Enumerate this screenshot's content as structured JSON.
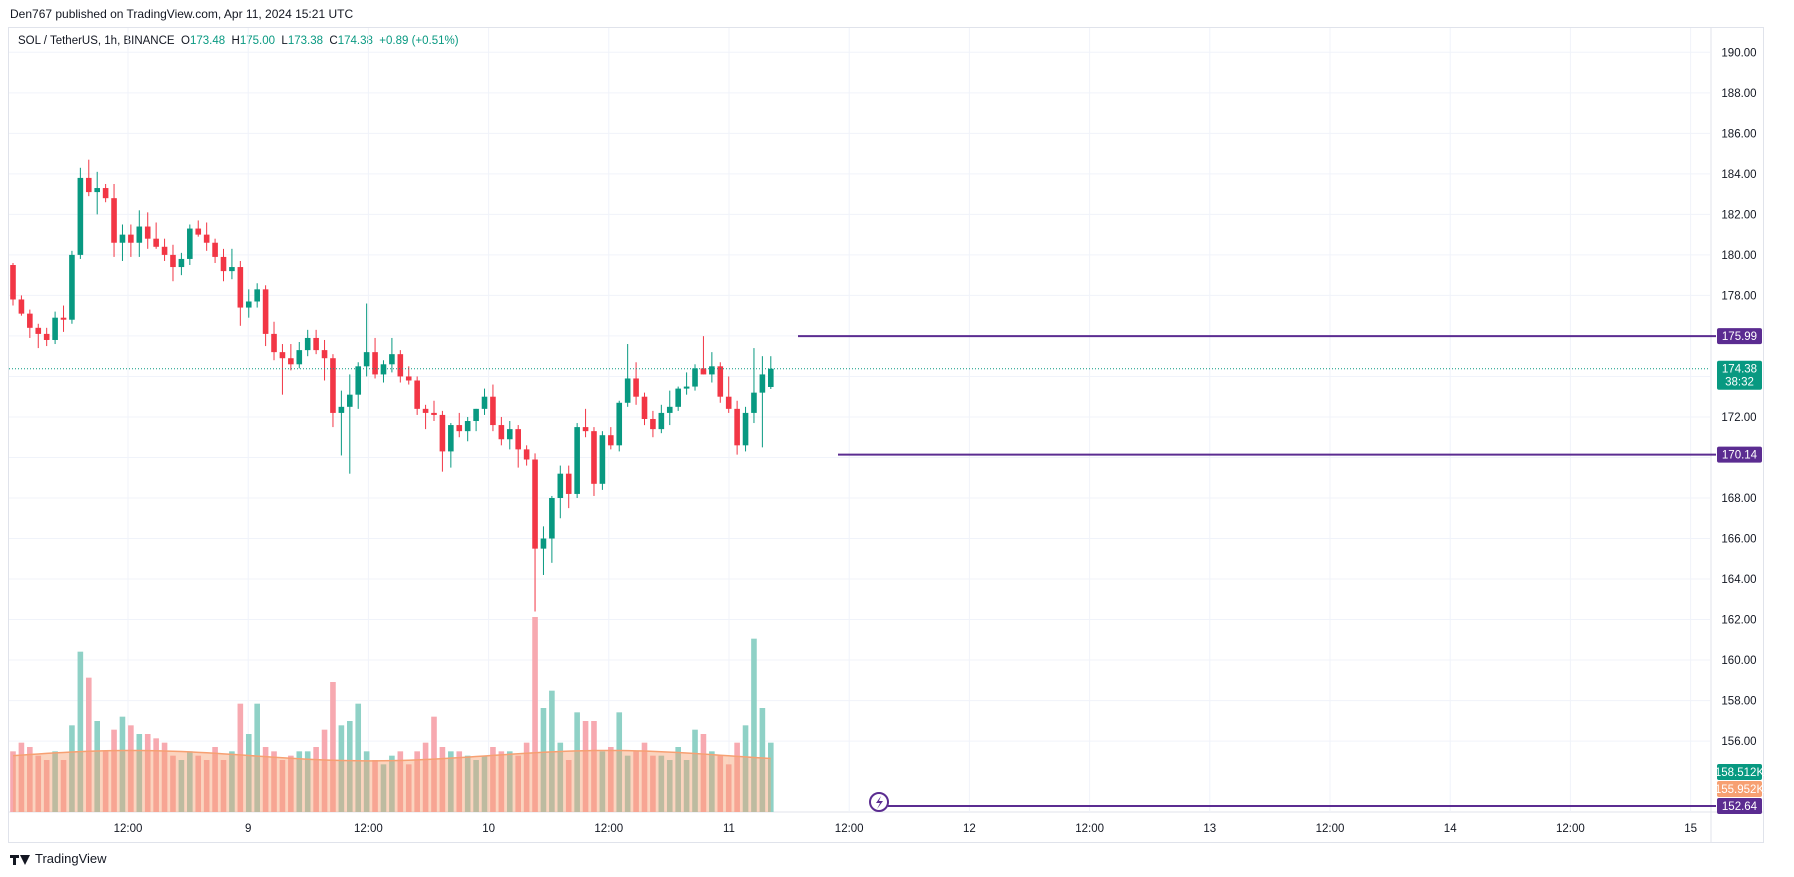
{
  "header": {
    "published": "Den767 published on TradingView.com, Apr 11, 2024 15:21 UTC"
  },
  "legend": {
    "symbol": "SOL / TetherUS, 1h, BINANCE",
    "open_label": "O",
    "open": "173.48",
    "high_label": "H",
    "high": "175.00",
    "low_label": "L",
    "low": "173.38",
    "close_label": "C",
    "close": "174.38",
    "change": "+0.89 (+0.51%)"
  },
  "footer": {
    "brand": "TradingView"
  },
  "colors": {
    "up": "#089981",
    "down": "#f23645",
    "vol_up": "#8fd1c6",
    "vol_down": "#f7a9b0",
    "vol_ma": "#f7a072",
    "level": "#5b2c91",
    "grid": "#f0f3fa"
  },
  "icons": {
    "marker": "lightning-icon"
  },
  "chart_data": {
    "type": "candlestick",
    "title": "",
    "interval": "1h",
    "ylim": [
      152.5,
      191.2
    ],
    "y_ticks": [
      "156.00",
      "158.00",
      "160.00",
      "162.00",
      "164.00",
      "166.00",
      "168.00",
      "170.00",
      "172.00",
      "174.00",
      "176.00",
      "178.00",
      "180.00",
      "182.00",
      "184.00",
      "186.00",
      "188.00",
      "190.00"
    ],
    "x_ticks": [
      "12:00",
      "9",
      "12:00",
      "10",
      "12:00",
      "11",
      "12:00",
      "12",
      "12:00",
      "13",
      "12:00",
      "14",
      "12:00",
      "15"
    ],
    "series": [
      {
        "ohlc": [
          [
            179.5,
            179.6,
            177.5,
            177.8
          ],
          [
            177.8,
            178.0,
            177.0,
            177.1
          ],
          [
            177.1,
            177.3,
            175.9,
            176.4
          ],
          [
            176.4,
            176.6,
            175.4,
            176.1
          ],
          [
            176.1,
            176.4,
            175.5,
            175.8
          ],
          [
            175.8,
            177.2,
            175.6,
            176.9
          ],
          [
            176.9,
            177.5,
            176.2,
            176.8
          ],
          [
            176.8,
            180.2,
            176.6,
            180.0
          ],
          [
            180.0,
            184.3,
            179.8,
            183.8
          ],
          [
            183.8,
            184.7,
            182.9,
            183.1
          ],
          [
            183.1,
            184.1,
            182.0,
            183.3
          ],
          [
            183.3,
            183.5,
            182.6,
            182.8
          ],
          [
            182.8,
            183.5,
            179.9,
            180.6
          ],
          [
            180.6,
            181.5,
            179.7,
            181.0
          ],
          [
            181.0,
            181.5,
            179.9,
            180.6
          ],
          [
            180.6,
            182.2,
            179.9,
            181.4
          ],
          [
            181.4,
            182.1,
            180.3,
            180.8
          ],
          [
            180.8,
            181.6,
            180.3,
            180.4
          ],
          [
            180.4,
            180.8,
            179.7,
            180.0
          ],
          [
            180.0,
            180.5,
            178.7,
            179.4
          ],
          [
            179.4,
            180.1,
            179.0,
            179.8
          ],
          [
            179.8,
            181.5,
            179.5,
            181.3
          ],
          [
            181.3,
            181.7,
            180.9,
            181.0
          ],
          [
            181.0,
            181.6,
            180.2,
            180.6
          ],
          [
            180.6,
            180.8,
            179.6,
            179.9
          ],
          [
            179.9,
            180.3,
            178.7,
            179.2
          ],
          [
            179.2,
            180.3,
            178.8,
            179.4
          ],
          [
            179.4,
            179.7,
            176.5,
            177.4
          ],
          [
            177.4,
            178.3,
            176.9,
            177.7
          ],
          [
            177.7,
            178.6,
            177.4,
            178.3
          ],
          [
            178.3,
            178.5,
            175.5,
            176.1
          ],
          [
            176.1,
            176.7,
            174.8,
            175.2
          ],
          [
            175.2,
            175.6,
            173.1,
            174.9
          ],
          [
            174.9,
            175.6,
            174.3,
            174.6
          ],
          [
            174.6,
            175.7,
            174.4,
            175.3
          ],
          [
            175.3,
            176.3,
            175.0,
            175.9
          ],
          [
            175.9,
            176.3,
            175.1,
            175.3
          ],
          [
            175.3,
            175.8,
            173.8,
            174.9
          ],
          [
            174.9,
            175.1,
            171.5,
            172.2
          ],
          [
            172.2,
            173.3,
            170.1,
            172.5
          ],
          [
            172.5,
            174.1,
            169.2,
            173.1
          ],
          [
            173.1,
            174.7,
            172.4,
            174.5
          ],
          [
            174.5,
            177.6,
            174.0,
            175.2
          ],
          [
            175.2,
            175.9,
            173.9,
            174.1
          ],
          [
            174.1,
            174.8,
            173.7,
            174.6
          ],
          [
            174.6,
            175.9,
            174.2,
            175.1
          ],
          [
            175.1,
            175.3,
            173.7,
            174.0
          ],
          [
            174.0,
            174.5,
            173.6,
            173.8
          ],
          [
            173.8,
            174.0,
            172.1,
            172.4
          ],
          [
            172.4,
            172.6,
            171.4,
            172.2
          ],
          [
            172.2,
            172.8,
            171.8,
            172.1
          ],
          [
            172.1,
            172.3,
            169.3,
            170.3
          ],
          [
            170.3,
            171.7,
            169.5,
            171.6
          ],
          [
            171.6,
            172.2,
            171.0,
            171.3
          ],
          [
            171.3,
            172.0,
            170.8,
            171.8
          ],
          [
            171.8,
            172.4,
            171.3,
            172.4
          ],
          [
            172.4,
            173.4,
            172.1,
            173.0
          ],
          [
            173.0,
            173.6,
            171.3,
            171.6
          ],
          [
            171.6,
            172.0,
            170.6,
            170.9
          ],
          [
            170.9,
            171.8,
            170.4,
            171.4
          ],
          [
            171.4,
            171.6,
            169.5,
            170.4
          ],
          [
            170.4,
            170.6,
            169.6,
            169.9
          ],
          [
            169.9,
            170.2,
            162.4,
            165.5
          ],
          [
            165.5,
            166.6,
            164.2,
            166.0
          ],
          [
            166.0,
            168.1,
            164.8,
            168.0
          ],
          [
            168.0,
            169.6,
            167.0,
            169.2
          ],
          [
            169.2,
            169.6,
            167.5,
            168.2
          ],
          [
            168.2,
            171.7,
            168.0,
            171.5
          ],
          [
            171.5,
            172.4,
            171.0,
            171.3
          ],
          [
            171.3,
            171.5,
            168.1,
            168.7
          ],
          [
            168.7,
            171.3,
            168.4,
            171.1
          ],
          [
            171.1,
            171.5,
            170.4,
            170.6
          ],
          [
            170.6,
            172.8,
            170.3,
            172.7
          ],
          [
            172.7,
            175.6,
            172.5,
            173.9
          ],
          [
            173.9,
            174.7,
            172.6,
            173.0
          ],
          [
            173.0,
            173.2,
            171.6,
            171.9
          ],
          [
            171.9,
            172.3,
            171.0,
            171.4
          ],
          [
            171.4,
            172.6,
            171.2,
            172.2
          ],
          [
            172.2,
            173.3,
            171.6,
            172.5
          ],
          [
            172.5,
            173.5,
            172.3,
            173.4
          ],
          [
            173.4,
            174.2,
            173.1,
            173.5
          ],
          [
            173.5,
            174.6,
            173.3,
            174.4
          ],
          [
            174.4,
            175.99,
            174.1,
            174.1
          ],
          [
            174.1,
            175.2,
            173.7,
            174.5
          ],
          [
            174.5,
            174.7,
            172.7,
            173.0
          ],
          [
            173.0,
            174.0,
            172.2,
            172.4
          ],
          [
            172.4,
            172.8,
            170.14,
            170.6
          ],
          [
            170.6,
            172.5,
            170.3,
            172.2
          ],
          [
            172.2,
            175.4,
            171.7,
            173.2
          ],
          [
            173.2,
            175.0,
            170.5,
            174.1
          ],
          [
            173.48,
            175.0,
            173.38,
            174.38
          ]
        ],
        "volume": [
          14,
          16,
          15,
          13,
          12,
          14,
          12,
          20,
          37,
          31,
          21,
          14,
          19,
          22,
          20,
          18,
          18,
          17,
          16,
          13,
          12,
          14,
          13,
          12,
          15,
          12,
          14,
          25,
          18,
          25,
          15,
          14,
          12,
          13,
          14,
          14,
          15,
          19,
          30,
          20,
          21,
          25,
          14,
          12,
          11,
          13,
          14,
          11,
          14,
          16,
          22,
          15,
          14,
          14,
          13,
          12,
          13,
          15,
          14,
          14,
          13,
          16,
          45,
          24,
          28,
          16,
          12,
          23,
          21,
          21,
          14,
          15,
          23,
          13,
          14,
          16,
          13,
          13,
          12,
          15,
          12,
          19,
          18,
          14,
          13,
          11,
          16,
          20,
          40,
          24,
          16
        ],
        "volume_ma": [
          158.5,
          155.952,
          152.64
        ],
        "volume_axis_labels": [
          "158.512K",
          "155.952K",
          "152.64"
        ]
      }
    ],
    "levels": [
      {
        "value": 175.99,
        "label": "175.99"
      },
      {
        "value": 170.14,
        "label": "170.14"
      }
    ],
    "last_price": {
      "value": 174.38,
      "label": "174.38",
      "countdown": "38:32"
    }
  }
}
